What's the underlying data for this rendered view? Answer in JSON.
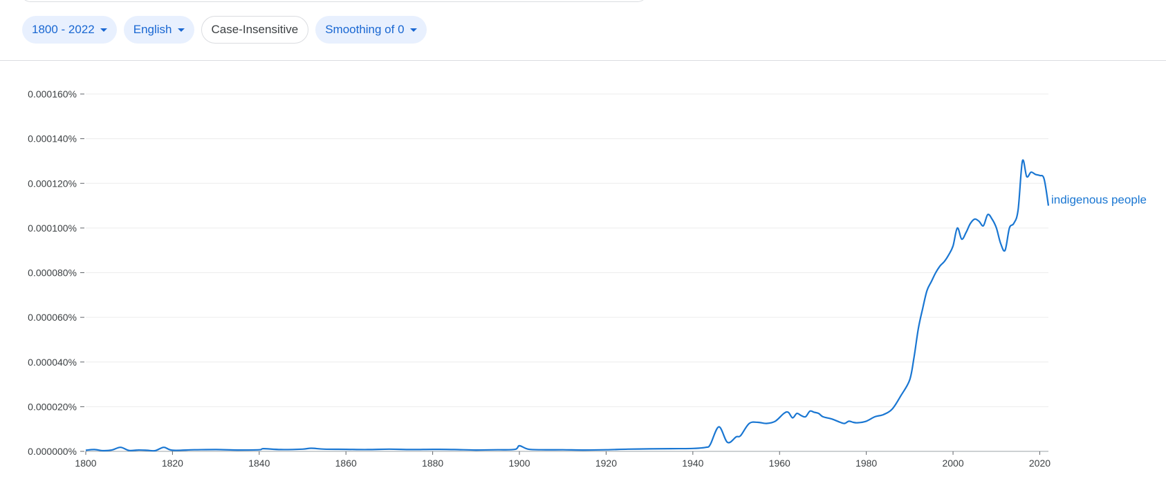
{
  "filters": {
    "year_range": "1800 - 2022",
    "corpus": "English",
    "case": "Case-Insensitive",
    "smoothing": "Smoothing of 0"
  },
  "colors": {
    "accent": "#1967d2",
    "series": "#1976d2",
    "chip_bg": "#e8f0fe"
  },
  "chart_data": {
    "type": "line",
    "xlim": [
      1800,
      2022
    ],
    "ylim": [
      0,
      0.00016
    ],
    "x_ticks": [
      1800,
      1820,
      1840,
      1860,
      1880,
      1900,
      1920,
      1940,
      1960,
      1980,
      2000,
      2020
    ],
    "y_ticks": [
      "0.000000%",
      "0.000020%",
      "0.000040%",
      "0.000060%",
      "0.000080%",
      "0.000100%",
      "0.000120%",
      "0.000140%",
      "0.000160%"
    ],
    "grid": true,
    "series": [
      {
        "name": "indigenous people",
        "x": [
          1800,
          1802,
          1804,
          1806,
          1808,
          1810,
          1812,
          1814,
          1816,
          1818,
          1820,
          1825,
          1830,
          1835,
          1840,
          1841,
          1845,
          1850,
          1852,
          1855,
          1860,
          1865,
          1870,
          1875,
          1880,
          1885,
          1890,
          1895,
          1899,
          1900,
          1902,
          1905,
          1910,
          1915,
          1920,
          1925,
          1930,
          1935,
          1940,
          1943,
          1944,
          1946,
          1948,
          1950,
          1951,
          1953,
          1955,
          1957,
          1959,
          1961,
          1962,
          1963,
          1964,
          1965,
          1966,
          1967,
          1968,
          1969,
          1970,
          1972,
          1974,
          1975,
          1976,
          1977,
          1978,
          1980,
          1982,
          1984,
          1986,
          1988,
          1990,
          1991,
          1992,
          1993,
          1994,
          1995,
          1996,
          1997,
          1998,
          1999,
          2000,
          2001,
          2002,
          2003,
          2004,
          2005,
          2006,
          2007,
          2008,
          2009,
          2010,
          2011,
          2012,
          2013,
          2014,
          2015,
          2016,
          2017,
          2018,
          2019,
          2020,
          2021,
          2022
        ],
        "y": [
          5e-07,
          8e-07,
          3e-07,
          6e-07,
          1.8e-06,
          4e-07,
          6e-07,
          5e-07,
          3e-07,
          1.8e-06,
          5e-07,
          7e-07,
          8e-07,
          6e-07,
          7e-07,
          1.2e-06,
          8e-07,
          1e-06,
          1.4e-06,
          1e-06,
          9e-07,
          8e-07,
          1e-06,
          8e-07,
          9e-07,
          8e-07,
          6e-07,
          7e-07,
          9e-07,
          2.5e-06,
          1e-06,
          7e-07,
          7e-07,
          6e-07,
          7e-07,
          1e-06,
          1.1e-06,
          1.2e-06,
          1.3e-06,
          1.8e-06,
          3e-06,
          1.1e-05,
          4e-06,
          6.5e-06,
          7e-06,
          1.25e-05,
          1.3e-05,
          1.25e-05,
          1.35e-05,
          1.7e-05,
          1.75e-05,
          1.5e-05,
          1.7e-05,
          1.6e-05,
          1.55e-05,
          1.8e-05,
          1.75e-05,
          1.7e-05,
          1.55e-05,
          1.45e-05,
          1.3e-05,
          1.25e-05,
          1.35e-05,
          1.3e-05,
          1.28e-05,
          1.35e-05,
          1.55e-05,
          1.65e-05,
          1.9e-05,
          2.5e-05,
          3.2e-05,
          4.2e-05,
          5.5e-05,
          6.4e-05,
          7.2e-05,
          7.6e-05,
          8e-05,
          8.3e-05,
          8.5e-05,
          8.8e-05,
          9.2e-05,
          0.0001,
          9.5e-05,
          9.8e-05,
          0.000102,
          0.000104,
          0.000103,
          0.000101,
          0.000106,
          0.000104,
          0.0001,
          9.3e-05,
          9e-05,
          0.0001,
          0.000102,
          0.000108,
          0.00013,
          0.000123,
          0.000125,
          0.000124,
          0.0001235,
          0.000122,
          0.00011
        ]
      }
    ]
  }
}
